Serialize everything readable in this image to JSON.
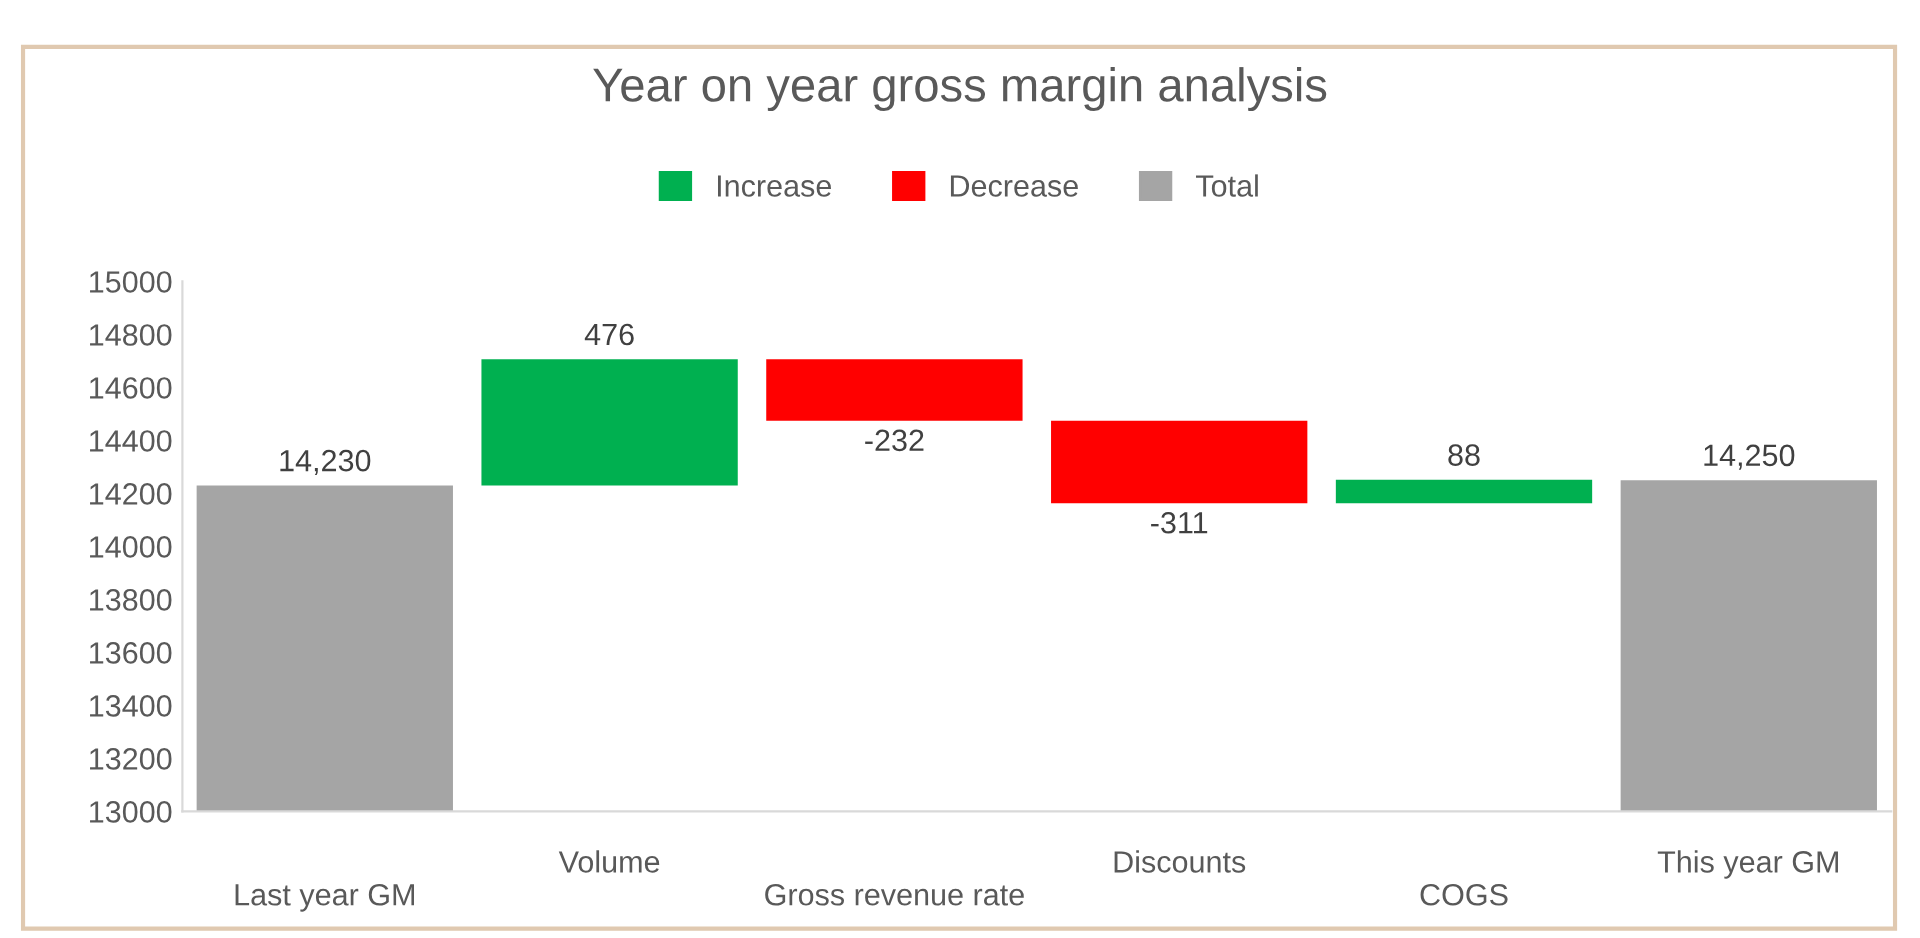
{
  "chart_data": {
    "type": "bar",
    "title": "Year on year gross margin analysis",
    "categories": [
      "Last year GM",
      "Volume",
      "Gross revenue rate",
      "Discounts",
      "COGS",
      "This year GM"
    ],
    "series": [
      {
        "name": "Increase",
        "color": "#00b050",
        "values": [
          null,
          476,
          null,
          null,
          88,
          null
        ],
        "base": [
          null,
          14230,
          null,
          null,
          14163,
          null
        ],
        "value_labels": [
          null,
          "476",
          null,
          null,
          "88",
          null
        ]
      },
      {
        "name": "Decrease",
        "color": "#ff0000",
        "values": [
          null,
          null,
          -232,
          -311,
          null,
          null
        ],
        "base": [
          null,
          null,
          14706,
          14474,
          null,
          null
        ],
        "value_labels": [
          null,
          null,
          "-232",
          "-311",
          null,
          null
        ]
      },
      {
        "name": "Total",
        "color": "#a5a5a5",
        "values": [
          14230,
          null,
          null,
          null,
          null,
          14250
        ],
        "value_labels": [
          "14,230",
          null,
          null,
          null,
          null,
          "14,250"
        ]
      }
    ],
    "ylim": [
      13000,
      15000
    ],
    "yticks": [
      13000,
      13200,
      13400,
      13600,
      13800,
      14000,
      14200,
      14400,
      14600,
      14800,
      15000
    ],
    "grid": false,
    "legend": "top"
  }
}
